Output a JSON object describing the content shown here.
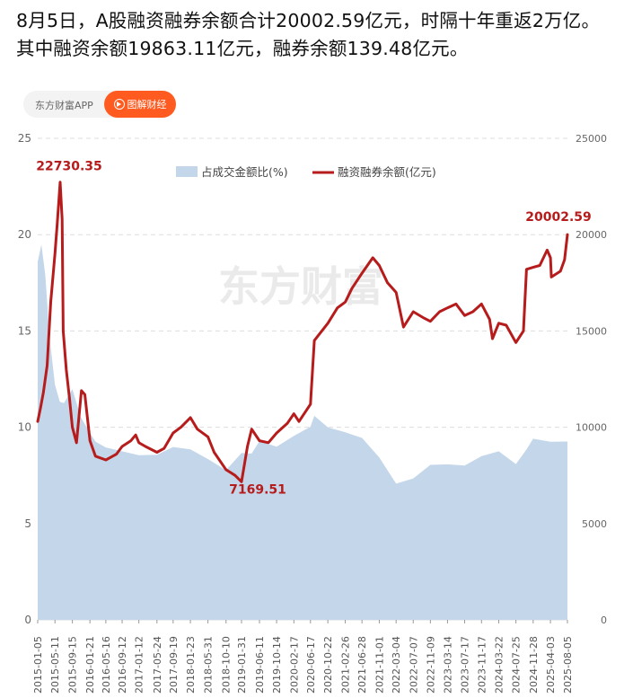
{
  "headline": "8月5日，A股融资融券余额合计20002.59亿元，时隔十年重返2万亿。其中融资余额19863.11亿元，融券余额139.48亿元。",
  "brand": {
    "app_label": "东方财富APP",
    "pill_label": "图解财经",
    "watermark": "东方财富"
  },
  "colors": {
    "area": "#c3d6ea",
    "line": "#b71c1c",
    "grid": "#dddddd",
    "text": "#666666",
    "annotation": "#b71c1c"
  },
  "chart_data": {
    "type": "line",
    "title": "",
    "legend": [
      {
        "name": "占成交金额比(%)",
        "type": "area",
        "color": "#c3d6ea",
        "axis": "left"
      },
      {
        "name": "融资融券余额(亿元)",
        "type": "line",
        "color": "#b71c1c",
        "axis": "right"
      }
    ],
    "legend_position": "top-center",
    "grid": true,
    "left_axis": {
      "ylim": [
        0,
        25
      ],
      "ticks": [
        0,
        5,
        10,
        15,
        20,
        25
      ]
    },
    "right_axis": {
      "ylim": [
        0,
        25000
      ],
      "ticks": [
        0,
        5000,
        10000,
        15000,
        20000,
        25000
      ]
    },
    "x_ticks": [
      "2015-01-05",
      "2015-05-11",
      "2015-09-15",
      "2016-01-21",
      "2016-05-16",
      "2016-09-12",
      "2017-01-12",
      "2017-05-24",
      "2017-09-19",
      "2018-01-23",
      "2018-05-31",
      "2018-10-10",
      "2019-01-31",
      "2019-06-11",
      "2019-10-14",
      "2020-02-17",
      "2020-06-17",
      "2020-10-22",
      "2021-02-26",
      "2021-06-28",
      "2021-11-01",
      "2022-03-04",
      "2022-07-07",
      "2022-11-09",
      "2023-03-14",
      "2023-07-17",
      "2023-11-17",
      "2024-03-22",
      "2024-07-25",
      "2024-11-28",
      "2025-04-03",
      "2025-08-05"
    ],
    "series": [
      {
        "name": "融资融券余额(亿元)",
        "x": [
          "2015-01-05",
          "2015-01-25",
          "2015-02-15",
          "2015-03-15",
          "2015-04-10",
          "2015-05-11",
          "2015-05-28",
          "2015-06-18",
          "2015-07-02",
          "2015-07-10",
          "2015-08-01",
          "2015-08-25",
          "2015-09-15",
          "2015-10-15",
          "2015-11-20",
          "2015-12-15",
          "2016-01-21",
          "2016-03-01",
          "2016-05-16",
          "2016-08-01",
          "2016-09-12",
          "2016-11-15",
          "2016-12-20",
          "2017-01-12",
          "2017-03-01",
          "2017-05-24",
          "2017-07-15",
          "2017-09-19",
          "2017-11-15",
          "2018-01-23",
          "2018-03-15",
          "2018-05-31",
          "2018-07-15",
          "2018-10-10",
          "2018-12-15",
          "2019-01-31",
          "2019-03-15",
          "2019-04-15",
          "2019-06-11",
          "2019-08-15",
          "2019-10-14",
          "2019-12-31",
          "2020-02-17",
          "2020-03-25",
          "2020-06-17",
          "2020-07-15",
          "2020-10-22",
          "2020-12-31",
          "2021-02-26",
          "2021-04-15",
          "2021-06-28",
          "2021-09-15",
          "2021-11-01",
          "2021-12-31",
          "2022-03-04",
          "2022-04-27",
          "2022-07-07",
          "2022-09-15",
          "2022-11-09",
          "2023-01-15",
          "2023-03-14",
          "2023-05-15",
          "2023-07-17",
          "2023-09-15",
          "2023-11-17",
          "2024-01-15",
          "2024-02-05",
          "2024-03-22",
          "2024-05-15",
          "2024-07-25",
          "2024-09-18",
          "2024-10-10",
          "2024-11-28",
          "2025-01-15",
          "2025-03-10",
          "2025-04-03",
          "2025-04-10",
          "2025-06-15",
          "2025-07-15",
          "2025-08-05"
        ],
        "values": [
          10300,
          11000,
          11800,
          13200,
          16500,
          19000,
          20600,
          22730.35,
          20800,
          15000,
          13000,
          11500,
          10000,
          9200,
          11900,
          11700,
          9300,
          8500,
          8300,
          8600,
          9000,
          9300,
          9600,
          9200,
          9000,
          8700,
          8900,
          9700,
          10000,
          10500,
          9900,
          9500,
          8700,
          7800,
          7500,
          7169.51,
          9000,
          9900,
          9300,
          9200,
          9700,
          10200,
          10700,
          10300,
          11200,
          14500,
          15400,
          16200,
          16500,
          17200,
          18000,
          18800,
          18400,
          17500,
          17000,
          15200,
          16000,
          15700,
          15500,
          16000,
          16200,
          16400,
          15800,
          16000,
          16400,
          15600,
          14600,
          15400,
          15300,
          14400,
          15000,
          18200,
          18300,
          18400,
          19200,
          18800,
          17800,
          18100,
          18700,
          20002.59
        ]
      },
      {
        "name": "占成交金额比(%)",
        "x": [
          "2015-01-05",
          "2015-02-01",
          "2015-03-01",
          "2015-04-01",
          "2015-05-11",
          "2015-06-15",
          "2015-07-15",
          "2015-09-15",
          "2015-11-15",
          "2016-01-21",
          "2016-03-01",
          "2016-05-16",
          "2016-09-12",
          "2017-01-12",
          "2017-05-24",
          "2017-09-19",
          "2018-01-23",
          "2018-05-31",
          "2018-10-10",
          "2019-01-31",
          "2019-04-15",
          "2019-06-11",
          "2019-10-14",
          "2020-02-17",
          "2020-06-17",
          "2020-07-15",
          "2020-10-22",
          "2021-02-26",
          "2021-06-28",
          "2021-11-01",
          "2022-03-04",
          "2022-07-07",
          "2022-11-09",
          "2023-03-14",
          "2023-07-17",
          "2023-11-17",
          "2024-03-22",
          "2024-07-25",
          "2024-10-10",
          "2024-11-28",
          "2025-04-03",
          "2025-08-05"
        ],
        "values": [
          18.5,
          19.3,
          18.0,
          14.5,
          12.0,
          11.5,
          11.5,
          12.0,
          10.5,
          9.5,
          9.3,
          9.0,
          9.0,
          8.8,
          8.5,
          8.8,
          8.8,
          8.2,
          8.0,
          8.5,
          8.5,
          9.5,
          9.2,
          9.8,
          10.0,
          10.5,
          10.2,
          9.5,
          9.2,
          8.2,
          7.2,
          7.2,
          7.8,
          8.0,
          8.2,
          8.3,
          8.5,
          8.0,
          9.0,
          9.2,
          9.0,
          9.5
        ]
      }
    ],
    "annotations": [
      {
        "x": "2015-06-18",
        "y": 22730.35,
        "label": "22730.35"
      },
      {
        "x": "2019-01-31",
        "y": 7169.51,
        "label": "7169.51"
      },
      {
        "x": "2025-08-05",
        "y": 20002.59,
        "label": "20002.59"
      }
    ]
  }
}
